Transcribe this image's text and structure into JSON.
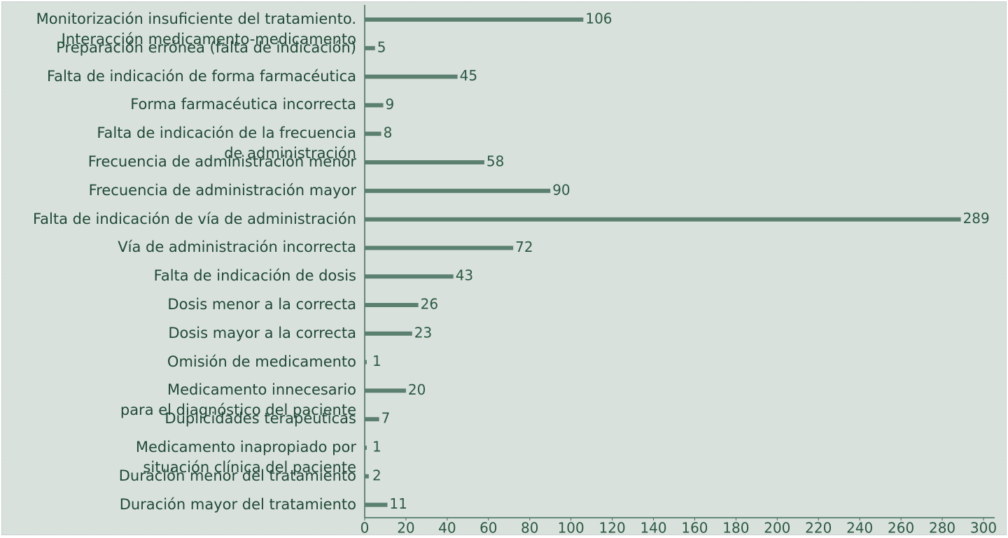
{
  "chart_data": {
    "type": "bar",
    "orientation": "horizontal",
    "categories": [
      "Monitorización insuficiente del tratamiento.\nInteracción medicamento-medicamento",
      "Preparación errónea (falta de  indicación)",
      "Falta de indicación de forma farmacéutica",
      "Forma farmacéutica incorrecta",
      "Falta de indicación de la frecuencia\nde administración",
      "Frecuencia de administración menor",
      "Frecuencia de administración mayor",
      "Falta de indicación de vía de administración",
      "Vía de administración incorrecta",
      "Falta de indicación de dosis",
      "Dosis menor a la correcta",
      "Dosis mayor a la correcta",
      "Omisión de medicamento",
      "Medicamento innecesario\npara el diagnóstico del paciente",
      "Duplicidades terapéuticas",
      "Medicamento inapropiado por\nsituación clínica del paciente",
      "Duración menor del tratamiento",
      "Duración mayor del tratamiento"
    ],
    "values": [
      106,
      5,
      45,
      9,
      8,
      58,
      90,
      289,
      72,
      43,
      26,
      23,
      1,
      20,
      7,
      1,
      2,
      11
    ],
    "color": "#5b8070",
    "xlim": [
      0,
      300
    ],
    "xticks": [
      0,
      20,
      40,
      60,
      80,
      100,
      120,
      140,
      160,
      180,
      200,
      220,
      240,
      260,
      280,
      300
    ]
  }
}
